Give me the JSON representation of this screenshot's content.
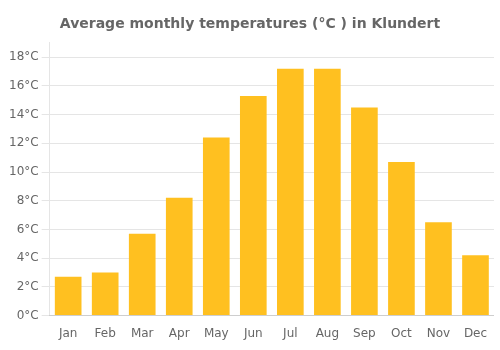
{
  "chart_data": {
    "type": "bar",
    "title": "Average monthly temperatures (°C ) in Klundert",
    "categories": [
      "Jan",
      "Feb",
      "Mar",
      "Apr",
      "May",
      "Jun",
      "Jul",
      "Aug",
      "Sep",
      "Oct",
      "Nov",
      "Dec"
    ],
    "values": [
      2.7,
      3.0,
      5.7,
      8.2,
      12.4,
      15.3,
      17.2,
      17.2,
      14.5,
      10.7,
      6.5,
      4.2
    ],
    "color": "#FFC020",
    "ylim": [
      0,
      19
    ],
    "yticks": [
      {
        "value": 0,
        "label": "0°C"
      },
      {
        "value": 2,
        "label": "2°C"
      },
      {
        "value": 4,
        "label": "4°C"
      },
      {
        "value": 6,
        "label": "6°C"
      },
      {
        "value": 8,
        "label": "8°C"
      },
      {
        "value": 10,
        "label": "10°C"
      },
      {
        "value": 12,
        "label": "12°C"
      },
      {
        "value": 14,
        "label": "14°C"
      },
      {
        "value": 16,
        "label": "16°C"
      },
      {
        "value": 18,
        "label": "18°C"
      }
    ],
    "grid": true
  }
}
